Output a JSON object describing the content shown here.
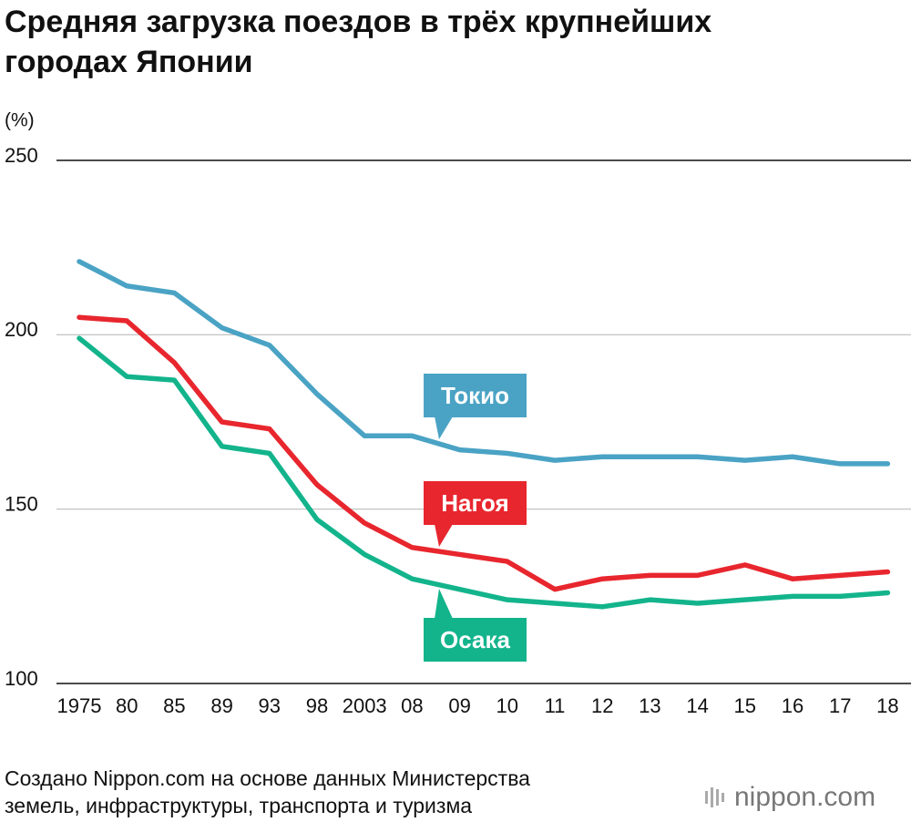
{
  "chart_data": {
    "type": "line",
    "title": [
      "Средняя загрузка поездов в трёх крупнейших",
      "городах Японии"
    ],
    "y_label": "(%)",
    "categories": [
      "1975",
      "80",
      "85",
      "89",
      "93",
      "98",
      "2003",
      "08",
      "09",
      "10",
      "11",
      "12",
      "13",
      "14",
      "15",
      "16",
      "17",
      "18"
    ],
    "series": [
      {
        "name": "Токио",
        "color": "#4aa3c4",
        "values": [
          221,
          214,
          212,
          202,
          197,
          183,
          171,
          171,
          167,
          166,
          164,
          165,
          165,
          165,
          164,
          165,
          163,
          163
        ]
      },
      {
        "name": "Нагоя",
        "color": "#e8262e",
        "values": [
          205,
          204,
          192,
          175,
          173,
          157,
          146,
          139,
          137,
          135,
          127,
          130,
          131,
          131,
          134,
          130,
          131,
          132
        ]
      },
      {
        "name": "Осака",
        "color": "#13b48c",
        "values": [
          199,
          188,
          187,
          168,
          166,
          147,
          137,
          130,
          127,
          124,
          123,
          122,
          124,
          123,
          124,
          125,
          125,
          126
        ]
      }
    ],
    "ylim": [
      100,
      250
    ],
    "yticks": [
      100,
      150,
      200,
      250
    ],
    "grid": true,
    "source": [
      "Создано Nippon.com на основе данных Министерства",
      "земель, инфраструктуры, транспорта и туризма"
    ],
    "logo": "nippon.com"
  }
}
